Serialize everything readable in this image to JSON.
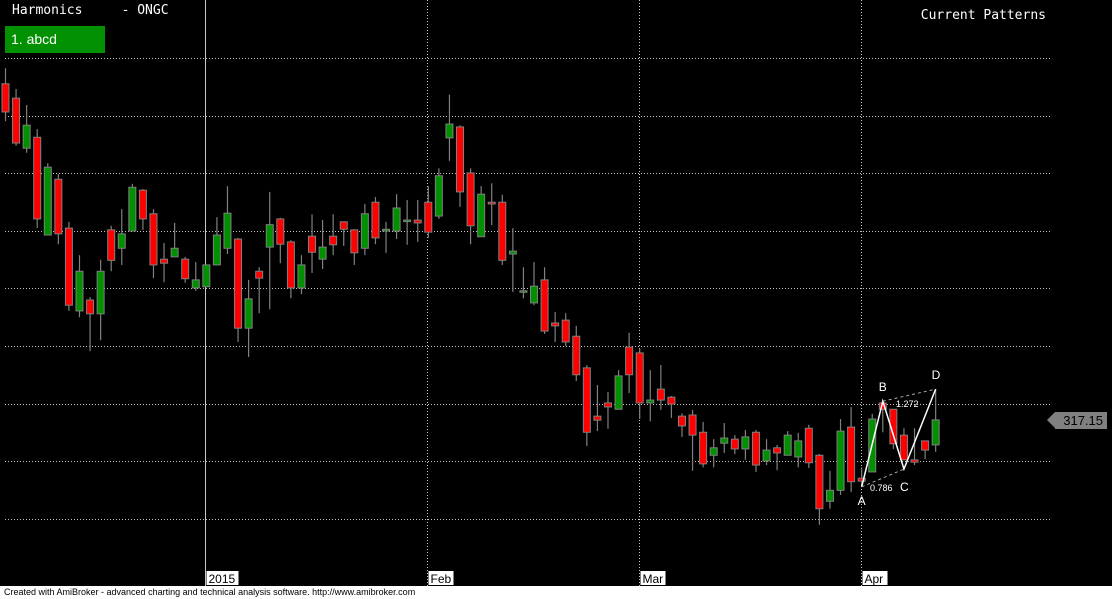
{
  "header": {
    "title": "Harmonics     - ONGC",
    "current_patterns_label": "Current Patterns"
  },
  "patterns": [
    {
      "label": "1. abcd",
      "color": "#009000"
    }
  ],
  "last_price": "317.15",
  "footer": "Created with AmiBroker - advanced charting and technical analysis software. http://www.amibroker.com",
  "chart_data": {
    "type": "candlestick",
    "symbol": "ONGC",
    "ylim": [
      295,
      390
    ],
    "grid": true,
    "horizontal_gridlines": [
      380,
      370,
      360,
      350,
      340,
      330,
      320,
      310,
      300
    ],
    "x_labels": [
      {
        "label": "2015",
        "index": 19,
        "style": "solid"
      },
      {
        "label": "Feb",
        "index": 40,
        "style": "dotted"
      },
      {
        "label": "Mar",
        "index": 60,
        "style": "dotted"
      },
      {
        "label": "Apr",
        "index": 81,
        "style": "dotted"
      }
    ],
    "colors": {
      "up": "#009000",
      "down": "#ff0000",
      "outline": "#808080",
      "pattern": "#ffffff"
    },
    "candles_ohlc": [
      [
        375.6,
        378.3,
        369.1,
        370.7
      ],
      [
        373.1,
        374.7,
        364.8,
        365.3
      ],
      [
        364.4,
        371.9,
        363.6,
        368.4
      ],
      [
        366.3,
        367.7,
        350.5,
        352.1
      ],
      [
        349.3,
        361.8,
        349.3,
        361.1
      ],
      [
        359.0,
        359.9,
        347.7,
        349.5
      ],
      [
        350.5,
        351.6,
        336.1,
        337.1
      ],
      [
        336.1,
        345.8,
        335.0,
        343.0
      ],
      [
        338.0,
        338.5,
        329.1,
        335.6
      ],
      [
        335.6,
        345.0,
        331.0,
        343.0
      ],
      [
        350.2,
        350.9,
        343.0,
        344.9
      ],
      [
        347.0,
        353.8,
        344.1,
        349.5
      ],
      [
        350.0,
        358.2,
        350.0,
        357.6
      ],
      [
        357.1,
        357.3,
        350.2,
        352.1
      ],
      [
        353.0,
        353.8,
        341.8,
        344.1
      ],
      [
        345.1,
        347.9,
        341.1,
        344.4
      ],
      [
        345.5,
        351.4,
        345.5,
        347.0
      ],
      [
        345.1,
        345.5,
        341.0,
        341.7
      ],
      [
        340.1,
        344.6,
        339.6,
        341.5
      ],
      [
        340.3,
        344.1,
        340.3,
        344.1
      ],
      [
        344.1,
        352.4,
        344.1,
        349.3
      ],
      [
        347.0,
        357.8,
        346.0,
        353.1
      ],
      [
        348.6,
        348.8,
        330.7,
        333.1
      ],
      [
        333.1,
        341.5,
        328.1,
        338.2
      ],
      [
        343.0,
        343.7,
        335.7,
        341.8
      ],
      [
        347.2,
        356.8,
        336.4,
        351.1
      ],
      [
        352.1,
        352.3,
        344.4,
        347.7
      ],
      [
        348.1,
        348.4,
        338.3,
        340.1
      ],
      [
        340.1,
        345.8,
        339.0,
        344.1
      ],
      [
        349.1,
        352.9,
        342.7,
        346.3
      ],
      [
        345.1,
        351.9,
        343.4,
        347.2
      ],
      [
        349.1,
        352.9,
        345.8,
        347.6
      ],
      [
        351.6,
        351.6,
        347.4,
        350.3
      ],
      [
        350.2,
        350.3,
        344.1,
        346.2
      ],
      [
        347.0,
        354.7,
        345.8,
        353.0
      ],
      [
        355.0,
        355.9,
        347.7,
        348.8
      ],
      [
        350.0,
        351.6,
        346.2,
        350.3
      ],
      [
        350.0,
        356.4,
        348.6,
        354.0
      ],
      [
        351.9,
        355.4,
        347.6,
        351.9
      ],
      [
        351.9,
        355.4,
        348.1,
        351.4
      ],
      [
        355.0,
        357.8,
        348.8,
        349.8
      ],
      [
        352.6,
        360.9,
        352.1,
        359.6
      ],
      [
        366.2,
        373.7,
        362.2,
        368.6
      ],
      [
        368.1,
        368.4,
        354.2,
        356.8
      ],
      [
        360.1,
        360.9,
        347.7,
        350.9
      ],
      [
        349.0,
        357.8,
        349.0,
        356.4
      ],
      [
        355.0,
        358.3,
        351.0,
        354.7
      ],
      [
        355.0,
        356.3,
        344.1,
        344.9
      ],
      [
        346.0,
        350.5,
        339.4,
        346.5
      ],
      [
        339.6,
        343.7,
        338.3,
        339.6
      ],
      [
        337.5,
        344.6,
        337.1,
        340.4
      ],
      [
        341.5,
        343.7,
        332.1,
        332.6
      ],
      [
        334.0,
        335.9,
        330.7,
        333.5
      ],
      [
        334.5,
        335.7,
        330.0,
        330.7
      ],
      [
        331.7,
        333.5,
        323.9,
        325.0
      ],
      [
        326.2,
        326.7,
        312.6,
        315.0
      ],
      [
        317.8,
        323.2,
        315.2,
        317.1
      ],
      [
        320.1,
        322.0,
        315.6,
        319.4
      ],
      [
        319.0,
        325.8,
        319.0,
        324.8
      ],
      [
        329.8,
        332.3,
        321.8,
        325.0
      ],
      [
        328.8,
        329.6,
        317.3,
        320.1
      ],
      [
        320.1,
        325.8,
        316.9,
        320.6
      ],
      [
        322.5,
        326.7,
        318.9,
        320.6
      ],
      [
        321.1,
        321.3,
        317.5,
        319.9
      ],
      [
        317.8,
        318.3,
        314.2,
        316.1
      ],
      [
        318.0,
        318.9,
        308.3,
        314.5
      ],
      [
        315.0,
        316.8,
        308.9,
        309.5
      ],
      [
        311.0,
        313.8,
        308.9,
        312.3
      ],
      [
        313.1,
        316.6,
        311.4,
        314.0
      ],
      [
        313.8,
        314.5,
        311.2,
        312.1
      ],
      [
        312.1,
        315.4,
        310.2,
        314.2
      ],
      [
        315.0,
        315.4,
        308.1,
        309.3
      ],
      [
        310.0,
        313.8,
        309.3,
        311.9
      ],
      [
        312.3,
        312.8,
        308.4,
        311.4
      ],
      [
        311.0,
        315.2,
        311.0,
        314.5
      ],
      [
        310.7,
        314.9,
        308.9,
        313.5
      ],
      [
        315.7,
        316.3,
        308.8,
        309.7
      ],
      [
        311.0,
        311.2,
        298.9,
        301.7
      ],
      [
        303.0,
        308.3,
        301.7,
        304.9
      ],
      [
        304.9,
        317.3,
        304.1,
        315.2
      ],
      [
        315.9,
        319.4,
        304.6,
        306.4
      ],
      [
        307.0,
        308.9,
        305.5,
        306.5
      ],
      [
        308.1,
        318.2,
        308.1,
        317.3
      ],
      [
        320.1,
        320.6,
        315.0,
        319.0
      ],
      [
        319.0,
        319.0,
        312.1,
        313.0
      ],
      [
        314.5,
        315.7,
        310.2,
        310.2
      ],
      [
        310.2,
        315.7,
        309.3,
        309.8
      ],
      [
        313.5,
        313.5,
        310.3,
        311.9
      ],
      [
        312.8,
        322.5,
        311.6,
        317.15
      ]
    ],
    "harmonic_pattern": {
      "name": "abcd",
      "points": [
        {
          "label": "A",
          "index": 81,
          "price": 305.5
        },
        {
          "label": "B",
          "index": 83,
          "price": 320.4
        },
        {
          "label": "C",
          "index": 85,
          "price": 308.6
        },
        {
          "label": "D",
          "index": 88,
          "price": 322.5
        }
      ],
      "ratios": [
        {
          "label": "0.786",
          "between": [
            "A",
            "C"
          ]
        },
        {
          "label": "1.272",
          "between": [
            "B",
            "D"
          ]
        }
      ]
    }
  }
}
